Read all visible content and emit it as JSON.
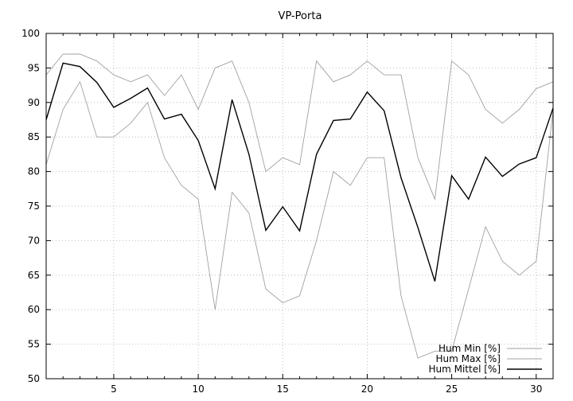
{
  "chart_data": {
    "type": "line",
    "title": "VP-Porta",
    "xlabel": "",
    "ylabel": "",
    "xlim": [
      1,
      31
    ],
    "ylim": [
      50,
      100
    ],
    "x_ticks": [
      5,
      10,
      15,
      20,
      25,
      30
    ],
    "y_ticks": [
      50,
      55,
      60,
      65,
      70,
      75,
      80,
      85,
      90,
      95,
      100
    ],
    "grid": true,
    "legend_position": "bottom-right",
    "x": [
      1,
      2,
      3,
      4,
      5,
      6,
      7,
      8,
      9,
      10,
      11,
      12,
      13,
      14,
      15,
      16,
      17,
      18,
      19,
      20,
      21,
      22,
      23,
      24,
      25,
      26,
      27,
      28,
      29,
      30,
      31
    ],
    "series": [
      {
        "name": "Hum Min [%]",
        "color": "#a0a0a0",
        "values": [
          81,
          89,
          93,
          85,
          85,
          87,
          90,
          82,
          78,
          76,
          60,
          77,
          74,
          63,
          61,
          62,
          70,
          80,
          78,
          82,
          82,
          62,
          53,
          54,
          54,
          63,
          72,
          67,
          65,
          67,
          89
        ]
      },
      {
        "name": "Hum Max [%]",
        "color": "#a0a0a0",
        "values": [
          94,
          97,
          97,
          96,
          94,
          93,
          94,
          91,
          94,
          89,
          95,
          96,
          90,
          80,
          82,
          81,
          96,
          93,
          94,
          96,
          94,
          94,
          82,
          76,
          96,
          94,
          89,
          87,
          89,
          92,
          93
        ]
      },
      {
        "name": "Hum Mittel [%]",
        "color": "#000000",
        "values": [
          87.5,
          95.7,
          95.2,
          92.9,
          89.3,
          90.6,
          92.1,
          87.6,
          88.3,
          84.5,
          77.5,
          90.4,
          82.5,
          71.5,
          74.9,
          71.4,
          82.5,
          87.4,
          87.6,
          91.5,
          88.8,
          79.1,
          71.9,
          64.1,
          79.4,
          76.0,
          82.1,
          79.3,
          81.1,
          82.0,
          89.2
        ]
      }
    ]
  }
}
